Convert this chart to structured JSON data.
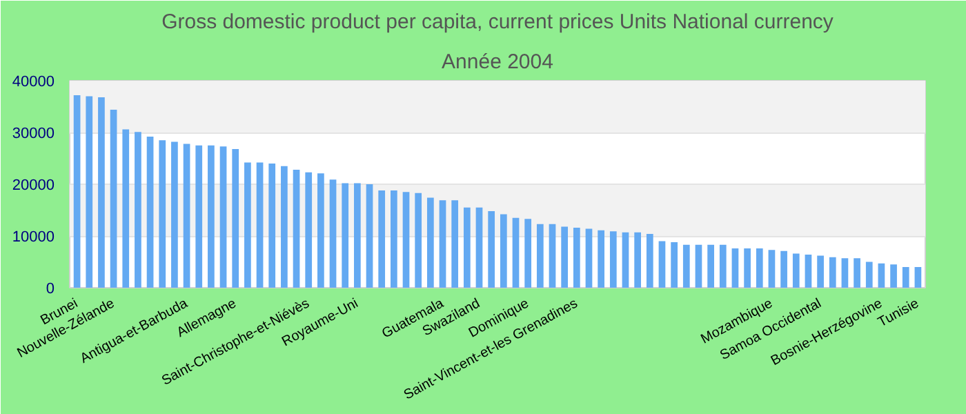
{
  "chart_data": {
    "type": "bar",
    "title": "Gross domestic product per capita, current prices Units National currency",
    "subtitle": "Année 2004",
    "categories": [
      "Brunei",
      null,
      null,
      "Nouvelle-Zélande",
      null,
      null,
      null,
      null,
      null,
      "Antigua-et-Barbuda",
      null,
      null,
      null,
      "Allemagne",
      null,
      null,
      null,
      null,
      null,
      "Saint-Christophe-et-Niévès",
      null,
      null,
      null,
      "Royaume-Uni",
      null,
      null,
      null,
      null,
      null,
      null,
      "Guatemala",
      null,
      null,
      "Swaziland",
      null,
      null,
      null,
      "Dominique",
      null,
      null,
      null,
      "Saint-Vincent-et-les Grenadines",
      null,
      null,
      null,
      null,
      null,
      null,
      null,
      null,
      null,
      null,
      null,
      null,
      null,
      null,
      null,
      "Mozambique",
      null,
      null,
      null,
      "Samoa Occidental",
      null,
      null,
      null,
      null,
      "Bosnie-Herzégovine",
      null,
      null,
      "Tunisie"
    ],
    "values": [
      37200,
      37000,
      36800,
      34400,
      30600,
      30100,
      29200,
      28500,
      28200,
      27800,
      27500,
      27500,
      27300,
      26800,
      24200,
      24200,
      24000,
      23500,
      22800,
      22300,
      22100,
      20900,
      20200,
      20200,
      20000,
      18800,
      18800,
      18500,
      18300,
      17400,
      16900,
      16900,
      15500,
      15500,
      14800,
      14200,
      13500,
      13300,
      12300,
      12300,
      11800,
      11600,
      11400,
      11100,
      10900,
      10700,
      10700,
      10400,
      9000,
      8800,
      8300,
      8300,
      8300,
      8300,
      7600,
      7600,
      7600,
      7300,
      7100,
      6600,
      6400,
      6200,
      5900,
      5700,
      5700,
      5000,
      4700,
      4500,
      4000,
      4000
    ],
    "color": "#63a9f2",
    "ylim": [
      0,
      40000
    ],
    "yticks": [
      0,
      10000,
      20000,
      30000,
      40000
    ],
    "grid": "y"
  }
}
